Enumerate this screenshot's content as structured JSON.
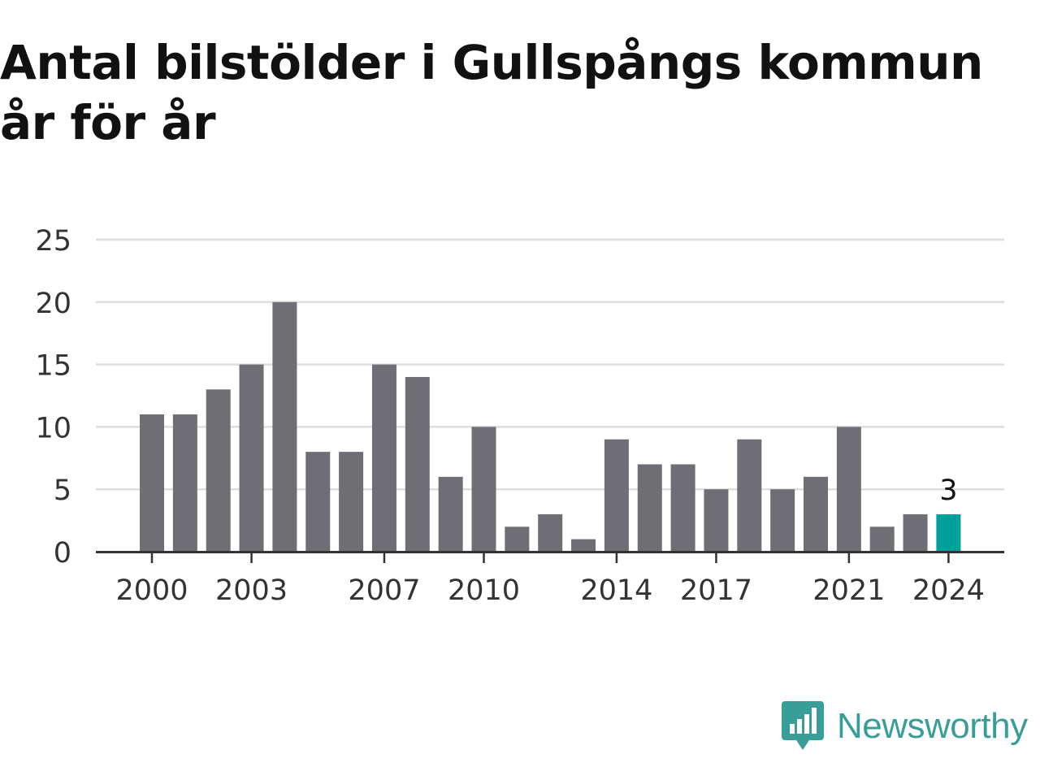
{
  "title": "Antal bilstölder i Gullspångs kommun år för år",
  "brand": {
    "name": "Newsworthy",
    "icon": "newsworthy-logo-icon",
    "color": "#3a9e98"
  },
  "colors": {
    "bar": "#6f6e74",
    "highlight": "#00a19a",
    "grid": "#dedede",
    "axis": "#333333"
  },
  "chart_data": {
    "type": "bar",
    "categories": [
      "2000",
      "2001",
      "2002",
      "2003",
      "2004",
      "2005",
      "2006",
      "2007",
      "2008",
      "2009",
      "2010",
      "2011",
      "2012",
      "2013",
      "2014",
      "2015",
      "2016",
      "2017",
      "2018",
      "2019",
      "2020",
      "2021",
      "2022",
      "2023",
      "2024"
    ],
    "values": [
      11,
      11,
      13,
      15,
      20,
      8,
      8,
      15,
      14,
      6,
      10,
      2,
      3,
      1,
      9,
      7,
      7,
      5,
      9,
      5,
      6,
      10,
      2,
      3,
      3
    ],
    "x_tick_labels": [
      "2000",
      "2003",
      "2007",
      "2010",
      "2014",
      "2017",
      "2021",
      "2024"
    ],
    "y_ticks": [
      0,
      5,
      10,
      15,
      20,
      25
    ],
    "ylim": [
      0,
      25
    ],
    "grid": true,
    "highlight": {
      "category": "2024",
      "label": "3"
    },
    "title": "Antal bilstölder i Gullspångs kommun år för år",
    "xlabel": "",
    "ylabel": ""
  }
}
